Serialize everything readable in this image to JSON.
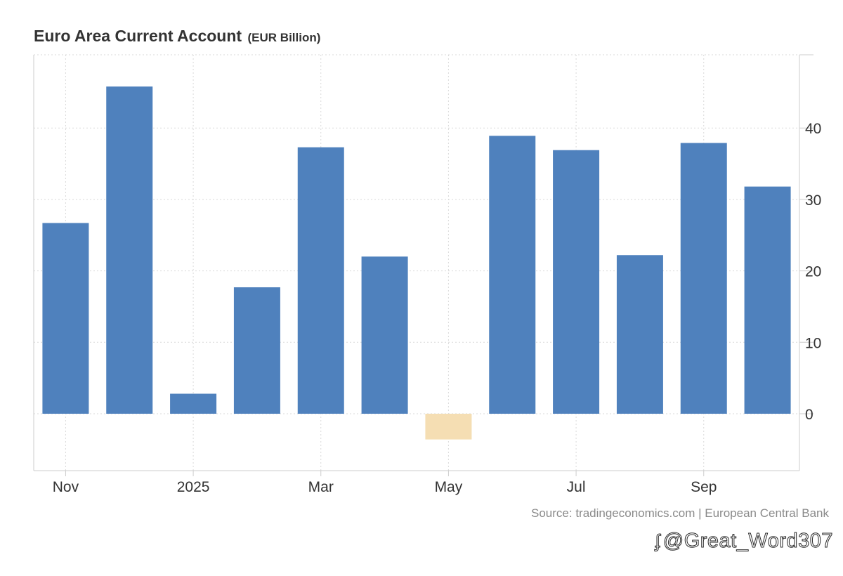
{
  "title": "Euro Area Current Account",
  "unit": "(EUR Billion)",
  "source": "Source: tradingeconomics.com | European Central Bank",
  "watermark": {
    "icon": "zhihu-logo-icon",
    "text": "@Great_Word307"
  },
  "colors": {
    "positive": "#4f81bd",
    "negative": "#f5deb3",
    "grid": "#d9d9d9",
    "axis": "#cccccc",
    "label": "#333333"
  },
  "chart_data": {
    "type": "bar",
    "categories": [
      "Nov 2024",
      "Dec 2024",
      "Jan 2025",
      "Feb 2025",
      "Mar 2025",
      "Apr 2025",
      "May 2025",
      "Jun 2025",
      "Jul 2025",
      "Aug 2025",
      "Sep 2025",
      "Oct 2025"
    ],
    "values": [
      26.7,
      45.8,
      2.8,
      17.7,
      37.3,
      22.0,
      -3.6,
      38.9,
      36.9,
      22.2,
      37.9,
      31.8
    ],
    "ylim": [
      -8,
      50
    ],
    "yticks": [
      0,
      10,
      20,
      30,
      40
    ],
    "ytick_labels": [
      "0",
      "10",
      "20",
      "30",
      "40"
    ],
    "xtick_labels": [
      {
        "label": "Nov",
        "index": 0
      },
      {
        "label": "2025",
        "index": 2
      },
      {
        "label": "Mar",
        "index": 4
      },
      {
        "label": "May",
        "index": 6
      },
      {
        "label": "Jul",
        "index": 8
      },
      {
        "label": "Sep",
        "index": 10
      }
    ],
    "y_axis_side": "right",
    "grid": true,
    "legend": "none"
  }
}
